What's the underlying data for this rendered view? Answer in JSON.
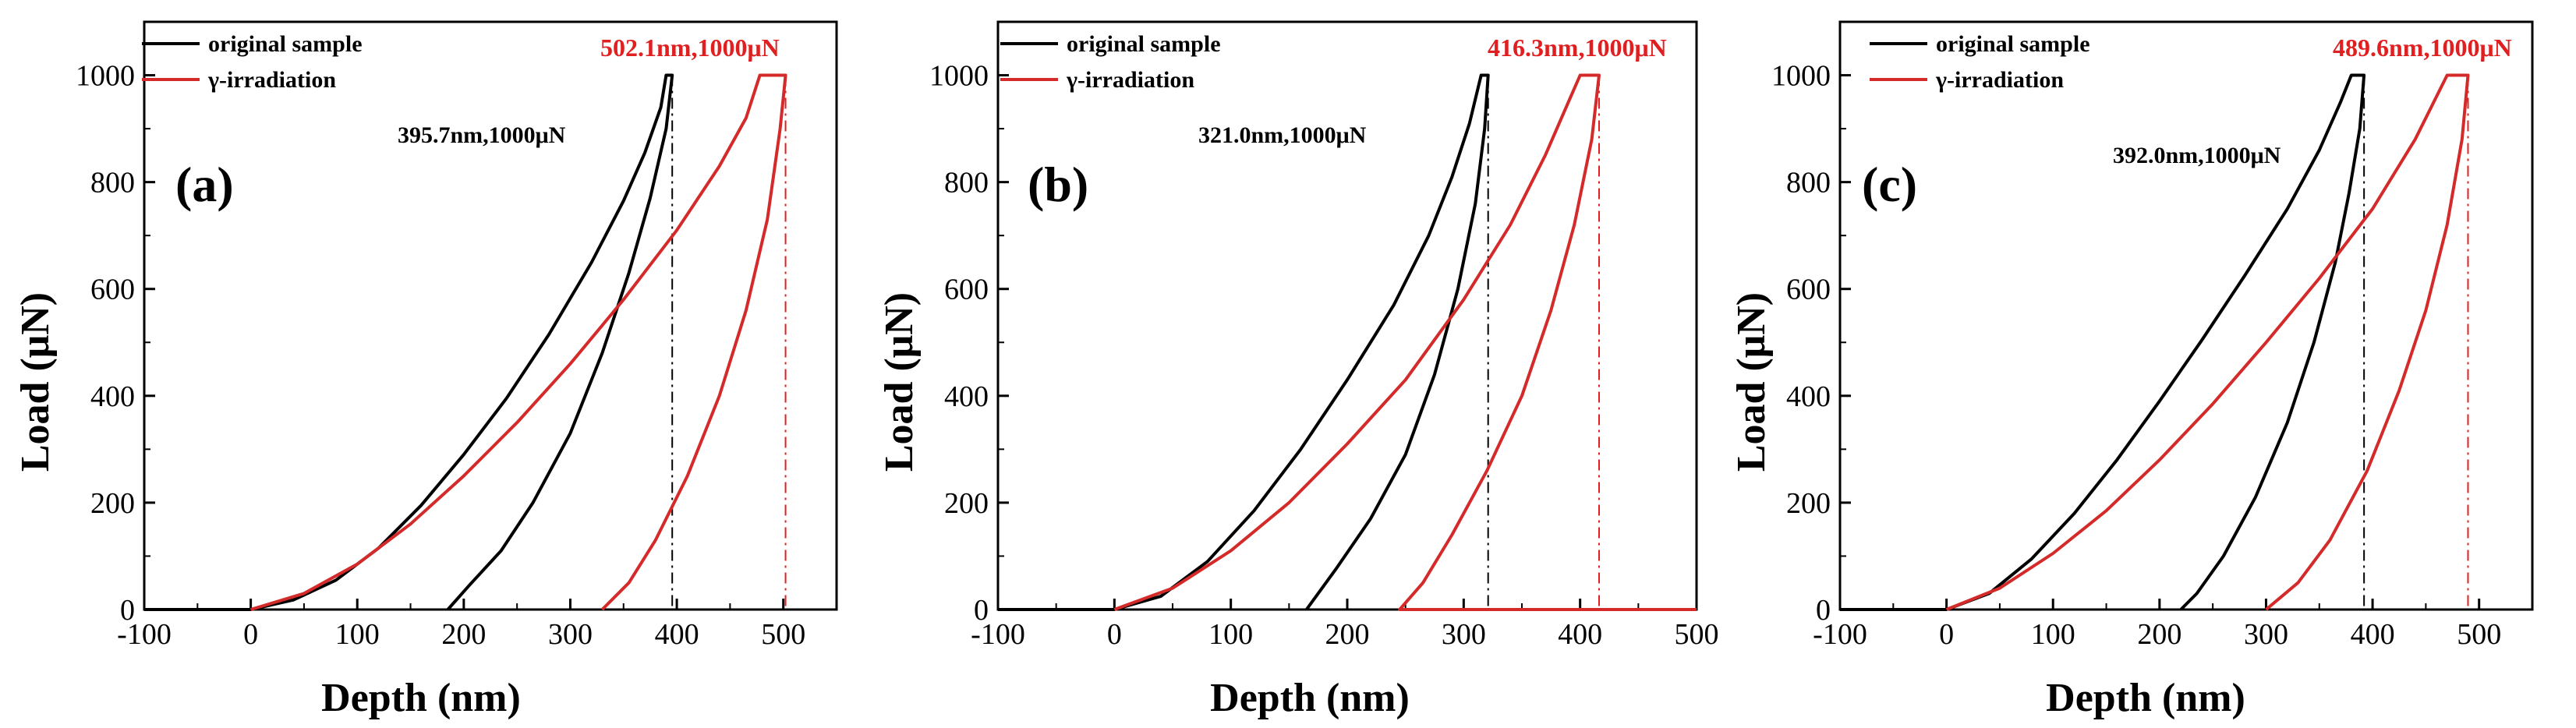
{
  "figure": {
    "colors": {
      "original": "#000000",
      "irradiated": "#d42a2a",
      "annotation_red": "#e02020"
    }
  },
  "chart_data": [
    {
      "type": "line",
      "panel_label": "(a)",
      "xlabel": "Depth (nm)",
      "ylabel": "Load (μN)",
      "xlim": [
        -100,
        550
      ],
      "ylim": [
        0,
        1100
      ],
      "x_ticks": [
        "-100",
        "0",
        "100",
        "200",
        "300",
        "400",
        "500"
      ],
      "y_ticks": [
        "0",
        "200",
        "400",
        "600",
        "800",
        "1000"
      ],
      "legend": [
        "original sample",
        "γ-irradiation"
      ],
      "series": [
        {
          "name": "original sample",
          "points": [
            [
              -100,
              0
            ],
            [
              0,
              0
            ],
            [
              40,
              18
            ],
            [
              80,
              55
            ],
            [
              120,
              115
            ],
            [
              160,
              195
            ],
            [
              200,
              290
            ],
            [
              240,
              395
            ],
            [
              280,
              515
            ],
            [
              320,
              650
            ],
            [
              350,
              765
            ],
            [
              370,
              855
            ],
            [
              385,
              940
            ],
            [
              390,
              1000
            ],
            [
              395.7,
              1000
            ],
            [
              390,
              900
            ],
            [
              375,
              770
            ],
            [
              355,
              630
            ],
            [
              330,
              480
            ],
            [
              300,
              330
            ],
            [
              265,
              200
            ],
            [
              235,
              110
            ],
            [
              205,
              45
            ],
            [
              185,
              0
            ]
          ]
        },
        {
          "name": "γ-irradiation",
          "points": [
            [
              0,
              0
            ],
            [
              50,
              30
            ],
            [
              100,
              85
            ],
            [
              150,
              160
            ],
            [
              200,
              250
            ],
            [
              250,
              350
            ],
            [
              300,
              460
            ],
            [
              350,
              580
            ],
            [
              400,
              710
            ],
            [
              440,
              830
            ],
            [
              465,
              920
            ],
            [
              478,
              1000
            ],
            [
              502.1,
              1000
            ],
            [
              497,
              900
            ],
            [
              485,
              730
            ],
            [
              465,
              560
            ],
            [
              440,
              400
            ],
            [
              410,
              250
            ],
            [
              380,
              130
            ],
            [
              355,
              50
            ],
            [
              330,
              0
            ]
          ]
        }
      ],
      "annotations": [
        {
          "text": "395.7nm,1000μN",
          "depth": 395.7,
          "load": 1000,
          "color": "black"
        },
        {
          "text": "502.1nm,1000μN",
          "depth": 502.1,
          "load": 1000,
          "color": "red"
        }
      ]
    },
    {
      "type": "line",
      "panel_label": "(b)",
      "xlabel": "Depth (nm)",
      "ylabel": "Load (μN)",
      "xlim": [
        -100,
        500
      ],
      "ylim": [
        0,
        1100
      ],
      "x_ticks": [
        "-100",
        "0",
        "100",
        "200",
        "300",
        "400",
        "500"
      ],
      "y_ticks": [
        "0",
        "200",
        "400",
        "600",
        "800",
        "1000"
      ],
      "legend": [
        "original sample",
        "γ-irradiation"
      ],
      "series": [
        {
          "name": "original sample",
          "points": [
            [
              -100,
              0
            ],
            [
              0,
              0
            ],
            [
              40,
              25
            ],
            [
              80,
              90
            ],
            [
              120,
              185
            ],
            [
              160,
              300
            ],
            [
              200,
              430
            ],
            [
              240,
              570
            ],
            [
              270,
              700
            ],
            [
              290,
              810
            ],
            [
              305,
              910
            ],
            [
              315,
              1000
            ],
            [
              321,
              1000
            ],
            [
              318,
              900
            ],
            [
              310,
              760
            ],
            [
              295,
              600
            ],
            [
              275,
              440
            ],
            [
              250,
              290
            ],
            [
              220,
              170
            ],
            [
              190,
              75
            ],
            [
              165,
              0
            ]
          ]
        },
        {
          "name": "γ-irradiation",
          "points": [
            [
              0,
              0
            ],
            [
              50,
              40
            ],
            [
              100,
              110
            ],
            [
              150,
              200
            ],
            [
              200,
              310
            ],
            [
              250,
              430
            ],
            [
              300,
              580
            ],
            [
              340,
              720
            ],
            [
              370,
              850
            ],
            [
              390,
              950
            ],
            [
              400,
              1000
            ],
            [
              416.3,
              1000
            ],
            [
              410,
              880
            ],
            [
              395,
              720
            ],
            [
              375,
              560
            ],
            [
              350,
              400
            ],
            [
              320,
              260
            ],
            [
              290,
              140
            ],
            [
              265,
              50
            ],
            [
              245,
              0
            ],
            [
              500,
              0
            ]
          ]
        }
      ],
      "annotations": [
        {
          "text": "321.0nm,1000μN",
          "depth": 321.0,
          "load": 1000,
          "color": "black"
        },
        {
          "text": "416.3nm,1000μN",
          "depth": 416.3,
          "load": 1000,
          "color": "red"
        }
      ]
    },
    {
      "type": "line",
      "panel_label": "(c)",
      "xlabel": "Depth (nm)",
      "ylabel": "Load (μN)",
      "xlim": [
        -100,
        550
      ],
      "ylim": [
        0,
        1100
      ],
      "x_ticks": [
        "-100",
        "0",
        "100",
        "200",
        "300",
        "400",
        "500"
      ],
      "y_ticks": [
        "0",
        "200",
        "400",
        "600",
        "800",
        "1000"
      ],
      "legend": [
        "original sample",
        "γ-irradiation"
      ],
      "series": [
        {
          "name": "original sample",
          "points": [
            [
              -100,
              0
            ],
            [
              0,
              0
            ],
            [
              40,
              30
            ],
            [
              80,
              95
            ],
            [
              120,
              180
            ],
            [
              160,
              280
            ],
            [
              200,
              390
            ],
            [
              240,
              505
            ],
            [
              280,
              625
            ],
            [
              320,
              750
            ],
            [
              350,
              860
            ],
            [
              370,
              950
            ],
            [
              380,
              1000
            ],
            [
              392,
              1000
            ],
            [
              388,
              900
            ],
            [
              378,
              780
            ],
            [
              365,
              650
            ],
            [
              345,
              500
            ],
            [
              320,
              350
            ],
            [
              290,
              210
            ],
            [
              260,
              100
            ],
            [
              235,
              30
            ],
            [
              220,
              0
            ]
          ]
        },
        {
          "name": "γ-irradiation",
          "points": [
            [
              0,
              0
            ],
            [
              50,
              40
            ],
            [
              100,
              105
            ],
            [
              150,
              185
            ],
            [
              200,
              280
            ],
            [
              250,
              385
            ],
            [
              300,
              500
            ],
            [
              350,
              620
            ],
            [
              400,
              750
            ],
            [
              440,
              880
            ],
            [
              460,
              960
            ],
            [
              470,
              1000
            ],
            [
              489.6,
              1000
            ],
            [
              484,
              880
            ],
            [
              470,
              720
            ],
            [
              450,
              560
            ],
            [
              425,
              410
            ],
            [
              395,
              260
            ],
            [
              360,
              130
            ],
            [
              330,
              50
            ],
            [
              300,
              0
            ]
          ]
        }
      ],
      "annotations": [
        {
          "text": "392.0nm,1000μN",
          "depth": 392.0,
          "load": 1000,
          "color": "black"
        },
        {
          "text": "489.6nm,1000μN",
          "depth": 489.6,
          "load": 1000,
          "color": "red"
        }
      ]
    }
  ]
}
